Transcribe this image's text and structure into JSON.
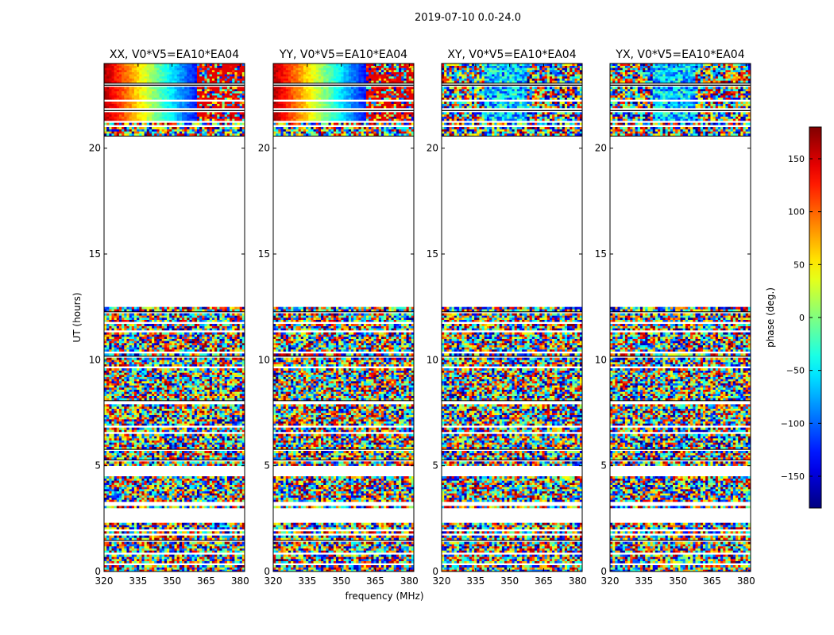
{
  "figure_title": "2019-07-10 0.0-24.0",
  "chart_data": {
    "type": "heatmap",
    "title": "2019-07-10 0.0-24.0",
    "xlabel": "frequency (MHz)",
    "ylabel": "UT (hours)",
    "xlim": [
      320,
      382
    ],
    "ylim": [
      0,
      24
    ],
    "xticks": [
      320,
      335,
      350,
      365,
      380
    ],
    "yticks": [
      0,
      5,
      10,
      15,
      20
    ],
    "panels": [
      {
        "title": "XX, V0*V5=EA10*EA04",
        "pol": "XX"
      },
      {
        "title": "YY, V0*V5=EA10*EA04",
        "pol": "YY"
      },
      {
        "title": "XY, V0*V5=EA10*EA04",
        "pol": "XY"
      },
      {
        "title": "YX, V0*V5=EA10*EA04",
        "pol": "YX"
      }
    ],
    "colorbar": {
      "label": "phase (deg.)",
      "range": [
        -180,
        180
      ],
      "ticks": [
        150,
        100,
        50,
        0,
        -50,
        -100,
        -150
      ],
      "tick_labels": [
        "150",
        "100",
        "50",
        "0",
        "−50",
        "−100",
        "−150"
      ],
      "colormap": "jet"
    },
    "data_time_ranges_hours": [
      [
        0.0,
        2.3
      ],
      [
        3.0,
        4.5
      ],
      [
        5.0,
        12.5
      ],
      [
        20.5,
        21.2
      ],
      [
        21.3,
        24.0
      ]
    ]
  }
}
